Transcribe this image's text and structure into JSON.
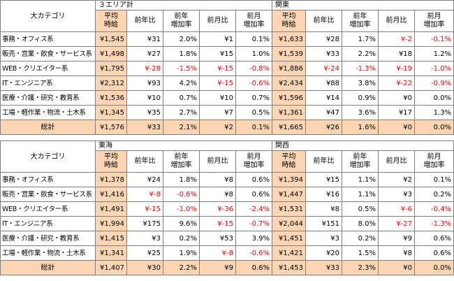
{
  "colors": {
    "highlight": "#fcd5b4",
    "negative": "#ff0000",
    "border": "#7f7f7f"
  },
  "sub_headers": [
    "平均\n時給",
    "前年比",
    "前年\n増加率",
    "前月比",
    "前月\n増加率"
  ],
  "top": {
    "category_header": "大カテゴリ",
    "regions": [
      "３エリア計",
      "関東"
    ],
    "rows": [
      {
        "label": "事務・オフィス系",
        "cells": [
          "¥1,545",
          "¥31",
          "2.0%",
          "¥1",
          "0.1%",
          "¥1,633",
          "¥28",
          "1.7%",
          "¥-2",
          "-0.1%"
        ]
      },
      {
        "label": "販売・営業・飲食・サービス系",
        "cells": [
          "¥1,498",
          "¥27",
          "1.8%",
          "¥15",
          "1.0%",
          "¥1,539",
          "¥33",
          "2.2%",
          "¥18",
          "1.2%"
        ]
      },
      {
        "label": "WEB・クリエイター系",
        "cells": [
          "¥1,795",
          "¥-28",
          "-1.5%",
          "¥-15",
          "-0.8%",
          "¥1,886",
          "¥-24",
          "-1.3%",
          "¥-19",
          "-1.0%"
        ]
      },
      {
        "label": "IT・エンジニア系",
        "cells": [
          "¥2,312",
          "¥93",
          "4.2%",
          "¥-15",
          "-0.6%",
          "¥2,434",
          "¥88",
          "3.8%",
          "¥-22",
          "-0.9%"
        ]
      },
      {
        "label": "医療・介護・研究・教育系",
        "cells": [
          "¥1,536",
          "¥10",
          "0.7%",
          "¥10",
          "0.7%",
          "¥1,596",
          "¥14",
          "0.9%",
          "¥0",
          "0.0%"
        ]
      },
      {
        "label": "工場・軽作業・物流・土木系",
        "cells": [
          "¥1,345",
          "¥35",
          "2.7%",
          "¥7",
          "0.5%",
          "¥1,361",
          "¥47",
          "3.6%",
          "¥17",
          "1.3%"
        ]
      }
    ],
    "total": {
      "label": "総計",
      "cells": [
        "¥1,576",
        "¥33",
        "2.1%",
        "¥2",
        "0.1%",
        "¥1,665",
        "¥26",
        "1.6%",
        "¥0",
        "0.0%"
      ]
    }
  },
  "bottom": {
    "category_header": "大カテゴリ",
    "regions": [
      "東海",
      "関西"
    ],
    "rows": [
      {
        "label": "事務・オフィス系",
        "cells": [
          "¥1,378",
          "¥24",
          "1.8%",
          "¥8",
          "0.6%",
          "¥1,394",
          "¥15",
          "1.1%",
          "¥2",
          "0.1%"
        ]
      },
      {
        "label": "販売・営業・飲食・サービス系",
        "cells": [
          "¥1,416",
          "¥-8",
          "-0.6%",
          "¥8",
          "0.6%",
          "¥1,447",
          "¥16",
          "1.1%",
          "¥3",
          "0.2%"
        ]
      },
      {
        "label": "WEB・クリエイター系",
        "cells": [
          "¥1,491",
          "¥-15",
          "-1.0%",
          "¥-36",
          "-2.4%",
          "¥1,531",
          "¥8",
          "0.5%",
          "¥-6",
          "-0.4%"
        ]
      },
      {
        "label": "IT・エンジニア系",
        "cells": [
          "¥1,994",
          "¥175",
          "9.6%",
          "¥-15",
          "-0.7%",
          "¥2,044",
          "¥151",
          "8.0%",
          "¥-27",
          "-1.3%"
        ]
      },
      {
        "label": "医療・介護・研究・教育系",
        "cells": [
          "¥1,415",
          "¥3",
          "0.2%",
          "¥53",
          "3.9%",
          "¥1,451",
          "¥3",
          "0.2%",
          "¥9",
          "0.6%"
        ]
      },
      {
        "label": "工場・軽作業・物流・土木系",
        "cells": [
          "¥1,341",
          "¥25",
          "1.9%",
          "¥-8",
          "-0.6%",
          "¥1,421",
          "¥20",
          "1.5%",
          "¥8",
          "0.6%"
        ]
      }
    ],
    "total": {
      "label": "総計",
      "cells": [
        "¥1,407",
        "¥30",
        "2.2%",
        "¥9",
        "0.6%",
        "¥1,453",
        "¥33",
        "2.3%",
        "¥0",
        "0.0%"
      ]
    }
  }
}
